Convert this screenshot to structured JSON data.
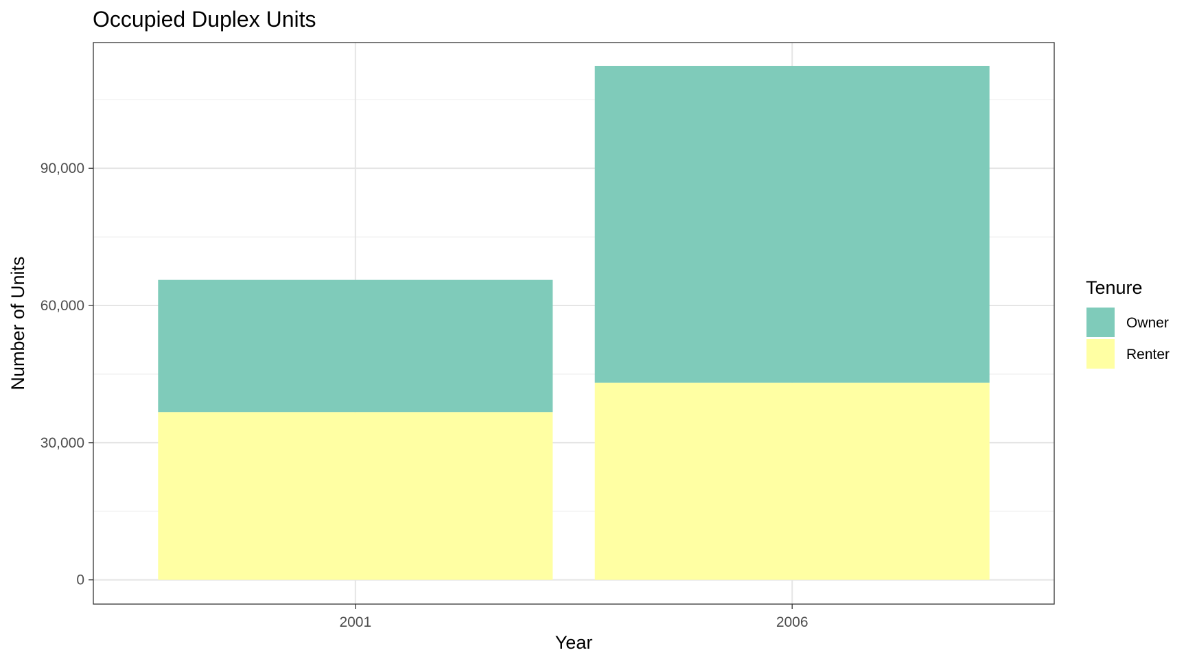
{
  "chart_data": {
    "type": "bar",
    "stacked": true,
    "title": "Occupied Duplex Units",
    "xlabel": "Year",
    "ylabel": "Number of Units",
    "categories": [
      "2001",
      "2006"
    ],
    "series": [
      {
        "name": "Renter",
        "values": [
          36700,
          43100
        ],
        "color": "#ffffa3"
      },
      {
        "name": "Owner",
        "values": [
          28900,
          69300
        ],
        "color": "#7fcbba"
      }
    ],
    "ylim": [
      -5300,
      117500
    ],
    "yticks": [
      0,
      30000,
      60000,
      90000
    ],
    "ytick_labels": [
      "0",
      "30,000",
      "60,000",
      "90,000"
    ],
    "grid": true,
    "legend": {
      "title": "Tenure",
      "placement": "right",
      "entries": [
        {
          "label": "Owner",
          "color": "#7fcbba"
        },
        {
          "label": "Renter",
          "color": "#ffffa3"
        }
      ]
    }
  }
}
